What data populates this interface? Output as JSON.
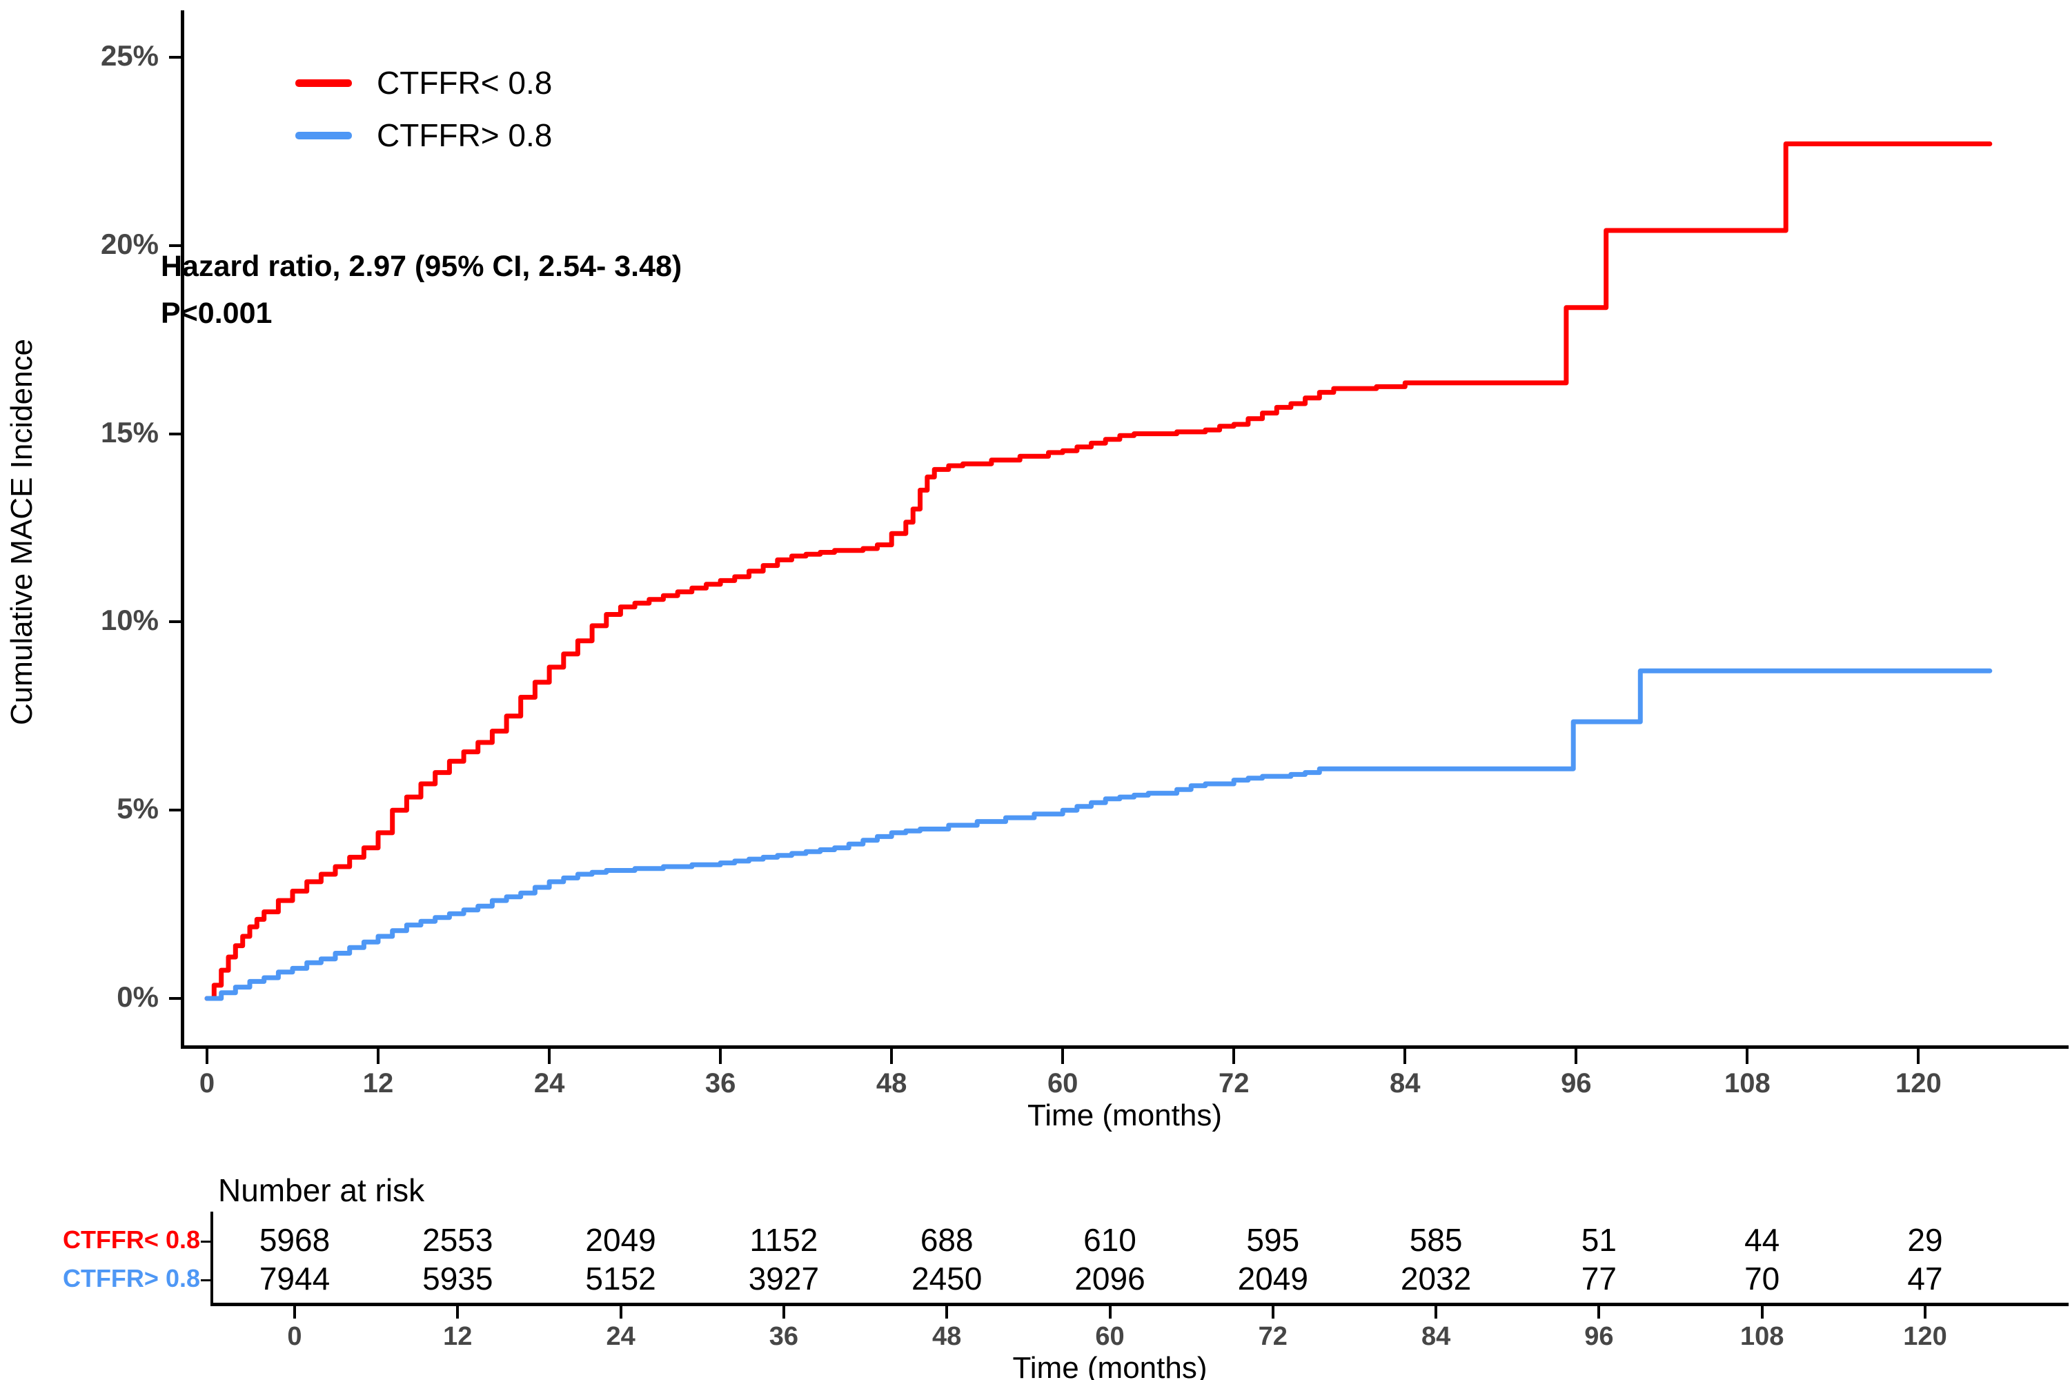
{
  "figure": {
    "annotation_line1": "Hazard ratio, 2.97 (95% CI, 2.54- 3.48)",
    "annotation_line2": "P<0.001"
  },
  "chart_data": {
    "type": "line",
    "step": "after",
    "title": "",
    "xlabel": "Time (months)",
    "ylabel": "Cumulative MACE Incidence",
    "xlim": [
      0,
      126
    ],
    "ylim": [
      0,
      25
    ],
    "grid": false,
    "legend_position": "top-left-inset",
    "x_ticks": [
      0,
      12,
      24,
      36,
      48,
      60,
      72,
      84,
      96,
      108,
      120
    ],
    "y_ticks": [
      {
        "value": 0,
        "label": "0%"
      },
      {
        "value": 5,
        "label": "5%"
      },
      {
        "value": 10,
        "label": "10%"
      },
      {
        "value": 15,
        "label": "15%"
      },
      {
        "value": 20,
        "label": "20%"
      },
      {
        "value": 25,
        "label": "25%"
      }
    ],
    "series": [
      {
        "name": "CTFFR< 0.8",
        "color": "#FF0000",
        "points": [
          [
            0,
            0
          ],
          [
            0.5,
            0.35
          ],
          [
            1,
            0.75
          ],
          [
            1.5,
            1.1
          ],
          [
            2,
            1.4
          ],
          [
            2.5,
            1.65
          ],
          [
            3,
            1.9
          ],
          [
            3.5,
            2.1
          ],
          [
            4,
            2.3
          ],
          [
            5,
            2.6
          ],
          [
            6,
            2.85
          ],
          [
            7,
            3.1
          ],
          [
            8,
            3.3
          ],
          [
            9,
            3.5
          ],
          [
            10,
            3.75
          ],
          [
            11,
            4.0
          ],
          [
            12,
            4.4
          ],
          [
            13,
            5.0
          ],
          [
            14,
            5.35
          ],
          [
            15,
            5.7
          ],
          [
            16,
            6.0
          ],
          [
            17,
            6.3
          ],
          [
            18,
            6.55
          ],
          [
            19,
            6.8
          ],
          [
            20,
            7.1
          ],
          [
            21,
            7.5
          ],
          [
            22,
            8.0
          ],
          [
            23,
            8.4
          ],
          [
            24,
            8.8
          ],
          [
            25,
            9.15
          ],
          [
            26,
            9.5
          ],
          [
            27,
            9.9
          ],
          [
            28,
            10.2
          ],
          [
            29,
            10.4
          ],
          [
            30,
            10.5
          ],
          [
            31,
            10.6
          ],
          [
            32,
            10.7
          ],
          [
            33,
            10.8
          ],
          [
            34,
            10.9
          ],
          [
            35,
            11.0
          ],
          [
            36,
            11.1
          ],
          [
            37,
            11.2
          ],
          [
            38,
            11.35
          ],
          [
            39,
            11.5
          ],
          [
            40,
            11.65
          ],
          [
            41,
            11.75
          ],
          [
            42,
            11.8
          ],
          [
            43,
            11.85
          ],
          [
            44,
            11.9
          ],
          [
            46,
            11.95
          ],
          [
            47,
            12.05
          ],
          [
            48,
            12.35
          ],
          [
            49,
            12.65
          ],
          [
            49.5,
            13.0
          ],
          [
            50,
            13.5
          ],
          [
            50.5,
            13.85
          ],
          [
            51,
            14.05
          ],
          [
            52,
            14.15
          ],
          [
            53,
            14.2
          ],
          [
            55,
            14.3
          ],
          [
            57,
            14.4
          ],
          [
            59,
            14.5
          ],
          [
            60,
            14.55
          ],
          [
            61,
            14.65
          ],
          [
            62,
            14.75
          ],
          [
            63,
            14.85
          ],
          [
            64,
            14.95
          ],
          [
            65,
            15.0
          ],
          [
            68,
            15.05
          ],
          [
            70,
            15.1
          ],
          [
            71,
            15.2
          ],
          [
            72,
            15.25
          ],
          [
            73,
            15.4
          ],
          [
            74,
            15.55
          ],
          [
            75,
            15.7
          ],
          [
            76,
            15.8
          ],
          [
            77,
            15.95
          ],
          [
            78,
            16.1
          ],
          [
            79,
            16.2
          ],
          [
            82,
            16.25
          ],
          [
            84,
            16.35
          ],
          [
            95.3,
            18.35
          ],
          [
            98.1,
            20.4
          ],
          [
            110.7,
            22.7
          ],
          [
            125,
            22.7
          ]
        ]
      },
      {
        "name": "CTFFR> 0.8",
        "color": "#4E97F5",
        "points": [
          [
            0,
            0
          ],
          [
            1,
            0.15
          ],
          [
            2,
            0.3
          ],
          [
            3,
            0.45
          ],
          [
            4,
            0.55
          ],
          [
            5,
            0.7
          ],
          [
            6,
            0.8
          ],
          [
            7,
            0.95
          ],
          [
            8,
            1.05
          ],
          [
            9,
            1.2
          ],
          [
            10,
            1.35
          ],
          [
            11,
            1.5
          ],
          [
            12,
            1.65
          ],
          [
            13,
            1.8
          ],
          [
            14,
            1.95
          ],
          [
            15,
            2.05
          ],
          [
            16,
            2.15
          ],
          [
            17,
            2.25
          ],
          [
            18,
            2.35
          ],
          [
            19,
            2.45
          ],
          [
            20,
            2.6
          ],
          [
            21,
            2.7
          ],
          [
            22,
            2.8
          ],
          [
            23,
            2.95
          ],
          [
            24,
            3.1
          ],
          [
            25,
            3.2
          ],
          [
            26,
            3.3
          ],
          [
            27,
            3.35
          ],
          [
            28,
            3.4
          ],
          [
            30,
            3.45
          ],
          [
            32,
            3.5
          ],
          [
            34,
            3.55
          ],
          [
            36,
            3.6
          ],
          [
            37,
            3.65
          ],
          [
            38,
            3.7
          ],
          [
            39,
            3.75
          ],
          [
            40,
            3.8
          ],
          [
            41,
            3.85
          ],
          [
            42,
            3.9
          ],
          [
            43,
            3.95
          ],
          [
            44,
            4.0
          ],
          [
            45,
            4.1
          ],
          [
            46,
            4.2
          ],
          [
            47,
            4.3
          ],
          [
            48,
            4.4
          ],
          [
            49,
            4.45
          ],
          [
            50,
            4.5
          ],
          [
            52,
            4.6
          ],
          [
            54,
            4.7
          ],
          [
            56,
            4.8
          ],
          [
            58,
            4.9
          ],
          [
            60,
            5.0
          ],
          [
            61,
            5.1
          ],
          [
            62,
            5.2
          ],
          [
            63,
            5.3
          ],
          [
            64,
            5.35
          ],
          [
            65,
            5.4
          ],
          [
            66,
            5.45
          ],
          [
            68,
            5.55
          ],
          [
            69,
            5.65
          ],
          [
            70,
            5.7
          ],
          [
            72,
            5.8
          ],
          [
            73,
            5.85
          ],
          [
            74,
            5.9
          ],
          [
            76,
            5.95
          ],
          [
            77,
            6.0
          ],
          [
            78,
            6.1
          ],
          [
            95.8,
            7.35
          ],
          [
            100.5,
            8.7
          ],
          [
            125,
            8.7
          ]
        ]
      }
    ]
  },
  "risk_table": {
    "title": "Number at risk",
    "x_axis_title": "Time (months)",
    "x_ticks": [
      0,
      12,
      24,
      36,
      48,
      60,
      72,
      84,
      96,
      108,
      120
    ],
    "rows": [
      {
        "label": "CTFFR< 0.8",
        "color": "#FF0000",
        "values": [
          5968,
          2553,
          2049,
          1152,
          688,
          610,
          595,
          585,
          51,
          44,
          29
        ]
      },
      {
        "label": "CTFFR> 0.8",
        "color": "#4E97F5",
        "values": [
          7944,
          5935,
          5152,
          3927,
          2450,
          2096,
          2049,
          2032,
          77,
          70,
          47
        ]
      }
    ]
  }
}
